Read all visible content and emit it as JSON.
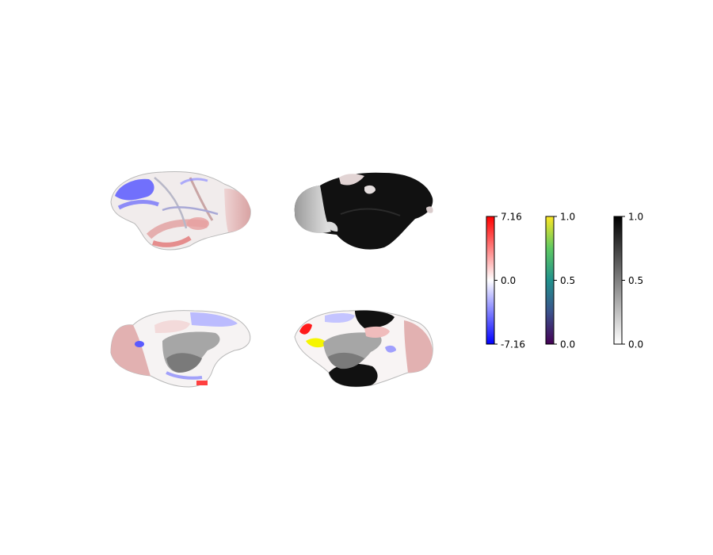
{
  "figure": {
    "panels": [
      {
        "name": "left-lateral",
        "view": "lateral",
        "hemisphere": "left",
        "overlay": "bwr-statistic"
      },
      {
        "name": "right-lateral",
        "view": "lateral",
        "hemisphere": "right",
        "overlay": "binary-mask-gray"
      },
      {
        "name": "left-medial",
        "view": "medial",
        "hemisphere": "left",
        "overlay": "bwr-statistic"
      },
      {
        "name": "right-medial",
        "view": "medial",
        "hemisphere": "right",
        "overlay": "mixed"
      }
    ],
    "colorbars": [
      {
        "name": "bwr",
        "colors": [
          "#0000ff",
          "#ffffff",
          "#ff0000"
        ],
        "ticks": [
          {
            "value": 7.16,
            "label": "7.16"
          },
          {
            "value": 0.0,
            "label": "0.0"
          },
          {
            "value": -7.16,
            "label": "-7.16"
          }
        ],
        "range": [
          -7.16,
          7.16
        ]
      },
      {
        "name": "viridis",
        "colors": [
          "#440154",
          "#3b528b",
          "#21918c",
          "#5ec962",
          "#fde725"
        ],
        "ticks": [
          {
            "value": 1.0,
            "label": "1.0"
          },
          {
            "value": 0.5,
            "label": "0.5"
          },
          {
            "value": 0.0,
            "label": "0.0"
          }
        ],
        "range": [
          0,
          1
        ]
      },
      {
        "name": "gray",
        "colors": [
          "#ffffff",
          "#000000"
        ],
        "ticks": [
          {
            "value": 1.0,
            "label": "1.0"
          },
          {
            "value": 0.5,
            "label": "0.5"
          },
          {
            "value": 0.0,
            "label": "0.0"
          }
        ],
        "range": [
          0,
          1
        ]
      }
    ],
    "colors": {
      "surface_base": "#f2eeee",
      "cortex_pink": "#e6b3b3",
      "mask_black": "#111111",
      "medial_wall": "#a6a6a6",
      "red": "#ff0000",
      "blue": "#4040ff",
      "yellow": "#ffff00"
    }
  }
}
